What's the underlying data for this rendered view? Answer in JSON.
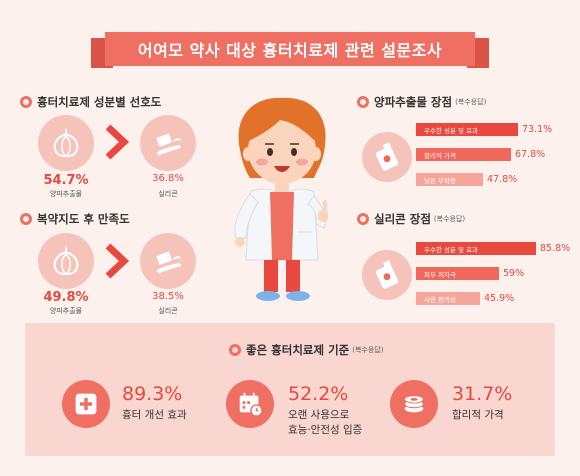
{
  "title": "어여모 약사 대상 흉터치료제 관련 설문조사",
  "preference": {
    "heading": "흉터치료제 성분별 선호도",
    "left_value": "54.7%",
    "left_caption": "양파추출물",
    "right_value": "36.8%",
    "right_caption": "실리콘"
  },
  "satisfaction": {
    "heading": "복약지도 후 만족도",
    "left_value": "49.8%",
    "left_caption": "양파추출물",
    "right_value": "38.5%",
    "right_caption": "실리콘"
  },
  "onion_merits": {
    "heading": "양파추출물 장점",
    "note": "(복수응답)",
    "items": [
      {
        "label": "우수한 성분 및 효과",
        "value": "73.1%",
        "pct": 73.1
      },
      {
        "label": "합리적 가격",
        "value": "67.8%",
        "pct": 67.8
      },
      {
        "label": "낮은 부작용",
        "value": "47.8%",
        "pct": 47.8
      }
    ]
  },
  "silicone_merits": {
    "heading": "실리콘 장점",
    "note": "(복수응답)",
    "items": [
      {
        "label": "우수한 성분 및 효과",
        "value": "85.8%",
        "pct": 85.8
      },
      {
        "label": "피부 저자극",
        "value": "59%",
        "pct": 59
      },
      {
        "label": "사용 편의성",
        "value": "45.9%",
        "pct": 45.9
      }
    ]
  },
  "standards": {
    "heading": "좋은 흉터치료제 기준",
    "note": "(복수응답)",
    "items": [
      {
        "pct": "89.3%",
        "line1": "흉터 개선 효과",
        "line2": ""
      },
      {
        "pct": "52.2%",
        "line1": "오랜 사용으로",
        "line2": "효능·안전성 입증"
      },
      {
        "pct": "31.7%",
        "line1": "합리적 가격",
        "line2": ""
      }
    ]
  },
  "colors": {
    "accent": "#ef6f62",
    "value_red": "#e44a3f",
    "bg": "#fdf1ee",
    "panel": "#f9d6cf"
  }
}
